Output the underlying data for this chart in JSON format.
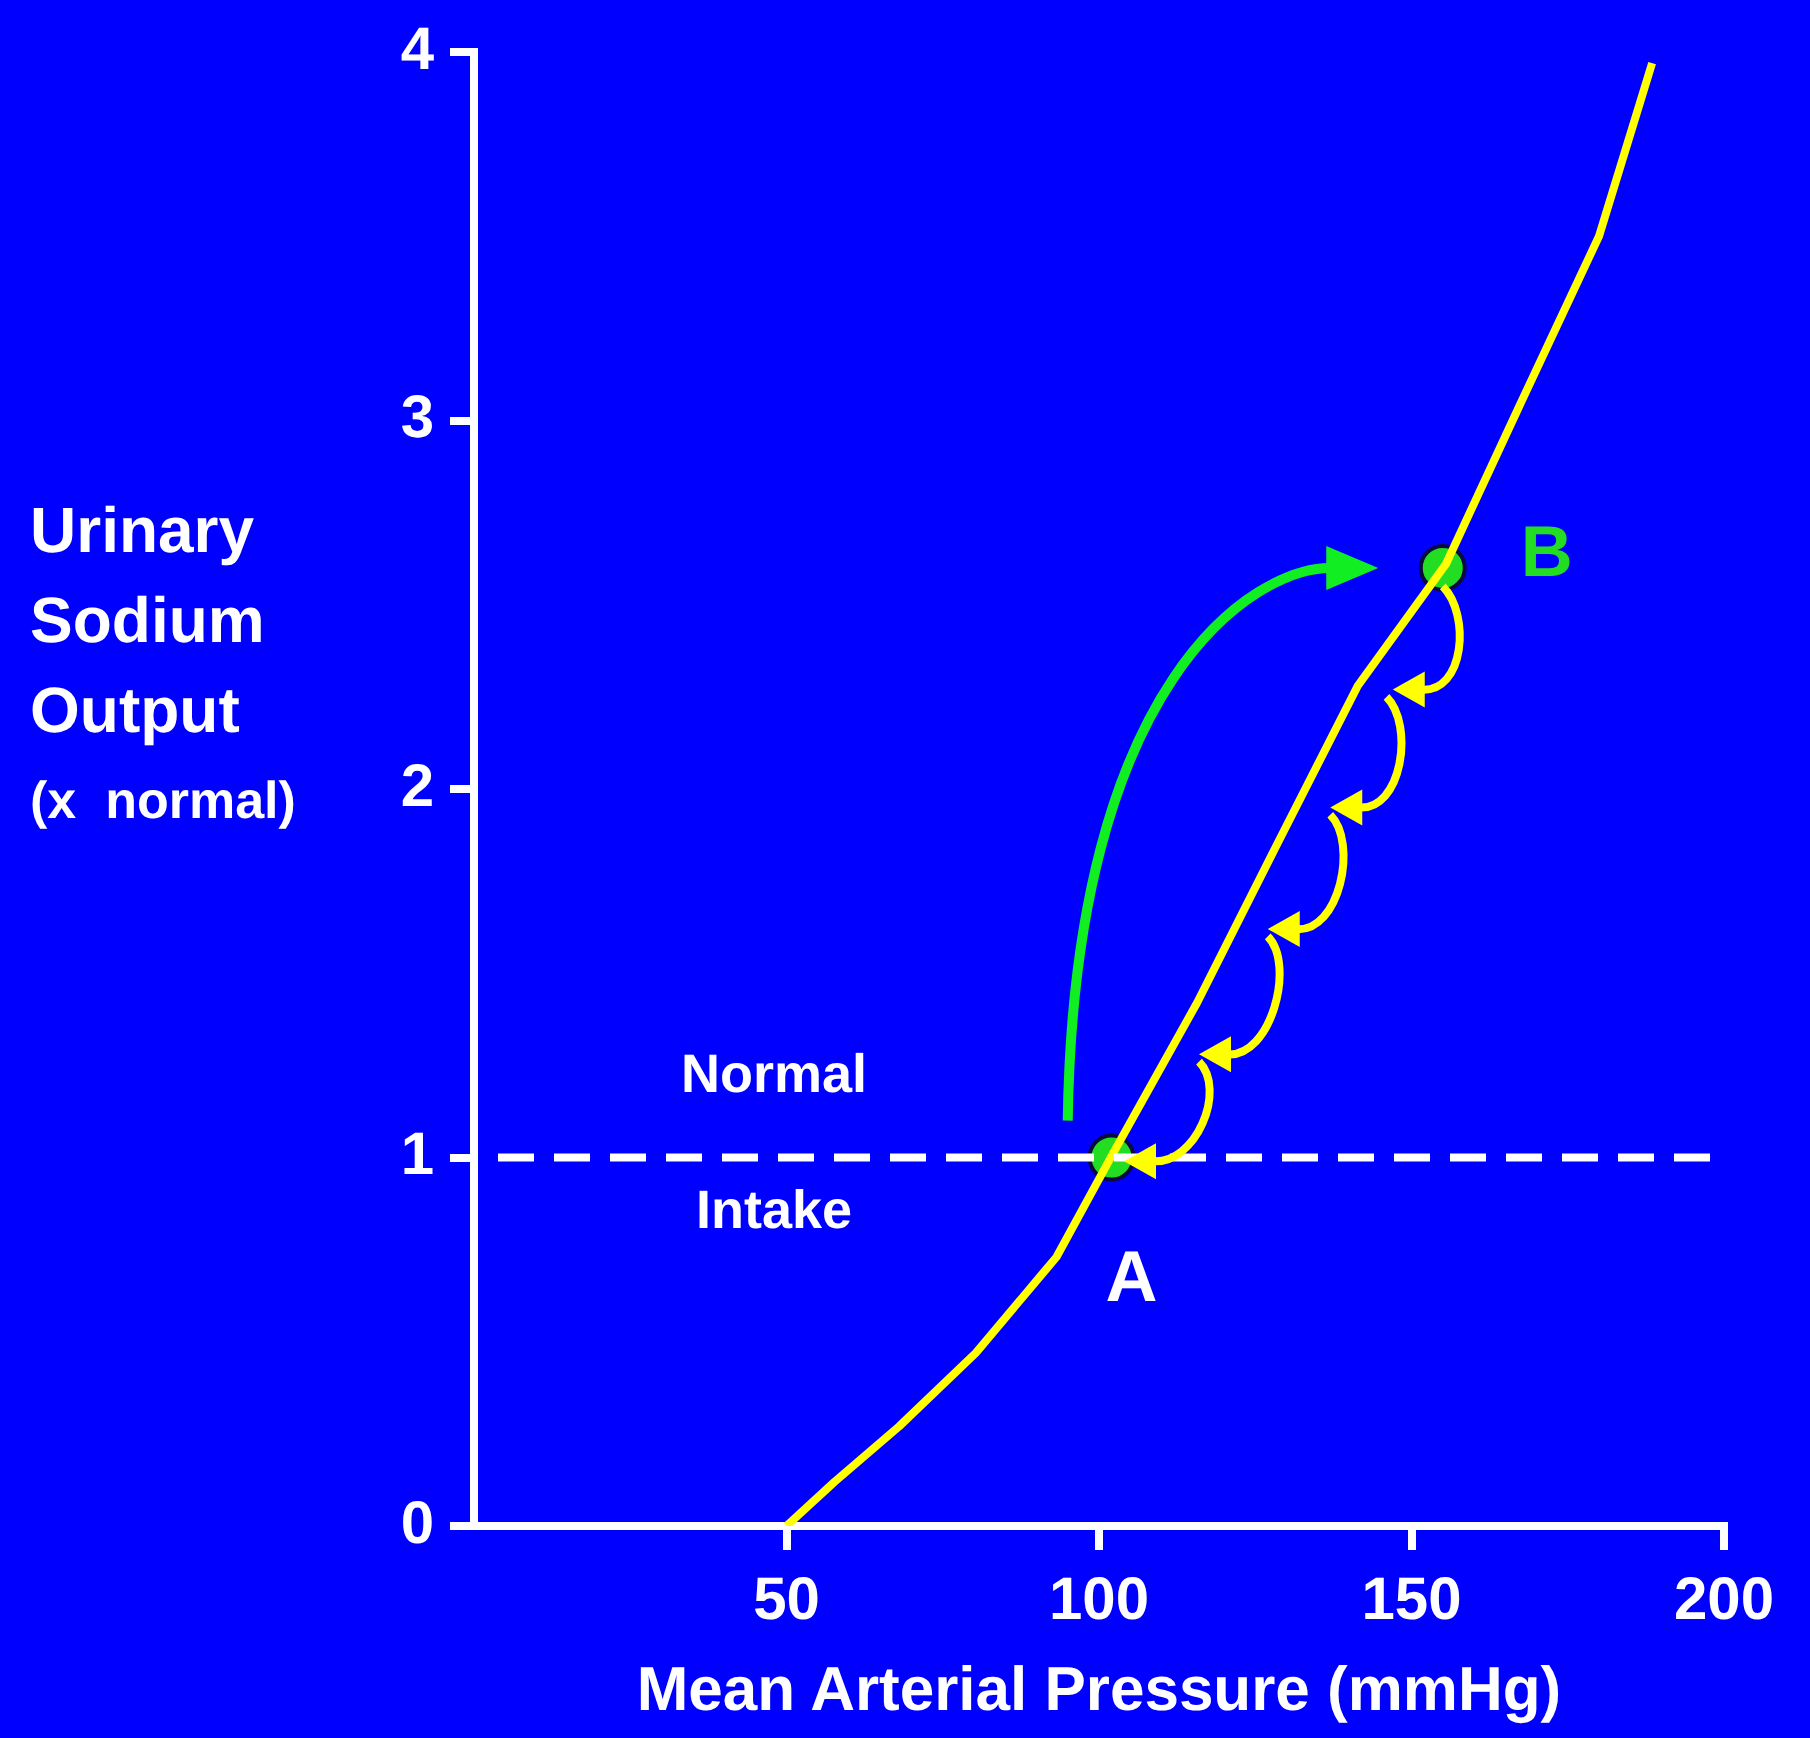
{
  "chart_data": {
    "type": "line",
    "xlabel": "Mean Arterial Pressure (mmHg)",
    "ylabel": "Urinary Sodium Output (x  normal)",
    "xlim": [
      0,
      200
    ],
    "xticks": [
      50,
      100,
      150,
      200
    ],
    "ylim": [
      0,
      4
    ],
    "yticks": [
      0,
      1,
      2,
      3,
      4
    ],
    "grid": false,
    "legend": false,
    "series": [
      {
        "type": "line",
        "color": "#ffff00",
        "marker": "none",
        "x": [
          50,
          57.7,
          68,
          80.3,
          93.2,
          102.2,
          115.7,
          128.5,
          141.4,
          155.5,
          167,
          180,
          188.5
        ],
        "values": [
          0,
          0.12,
          0.27,
          0.47,
          0.73,
          1.01,
          1.42,
          1.85,
          2.28,
          2.61,
          3.03,
          3.5,
          3.97
        ]
      },
      {
        "type": "scatter",
        "color": "#22dd22",
        "marker": "circle",
        "x": [
          102,
          155
        ],
        "values": [
          1,
          2.6
        ]
      }
    ],
    "ref_lines": [
      {
        "axis": "y",
        "value": 1,
        "color": "#ffffff",
        "line_style": "dashed"
      }
    ],
    "annotations": [
      {
        "text": "Normal",
        "x": 48,
        "y": 1
      },
      {
        "text": "Intake",
        "x": 48,
        "y": 1
      },
      {
        "text": "A",
        "x": 102,
        "y": 1
      },
      {
        "text": "B",
        "x": 155,
        "y": 2.6
      }
    ]
  }
}
